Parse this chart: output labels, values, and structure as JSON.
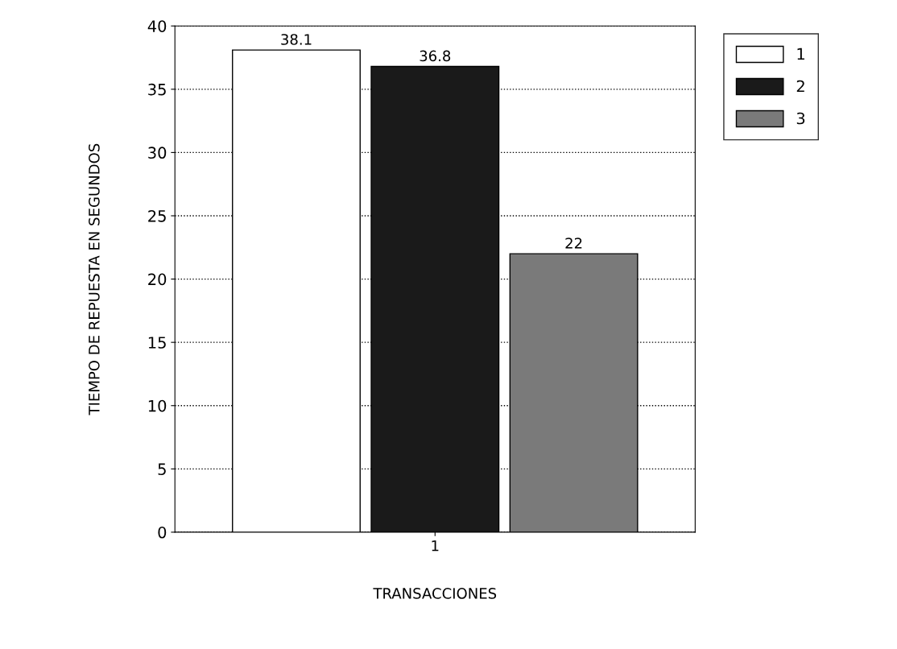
{
  "chart_data": {
    "type": "bar",
    "xlabel": "TRANSACCIONES",
    "ylabel": "TIEMPO DE REPUESTA EN SEGUNDOS",
    "categories": [
      "1"
    ],
    "series": [
      {
        "name": "1",
        "color": "#ffffff",
        "values": [
          38.1
        ]
      },
      {
        "name": "2",
        "color": "#1a1a1a",
        "values": [
          36.8
        ]
      },
      {
        "name": "3",
        "color": "#7a7a7a",
        "values": [
          22
        ]
      }
    ],
    "ylim": [
      0,
      40
    ],
    "yticks": [
      0,
      5,
      10,
      15,
      20,
      25,
      30,
      35,
      40
    ],
    "grid": "y",
    "legend": "right",
    "data_labels": true
  }
}
